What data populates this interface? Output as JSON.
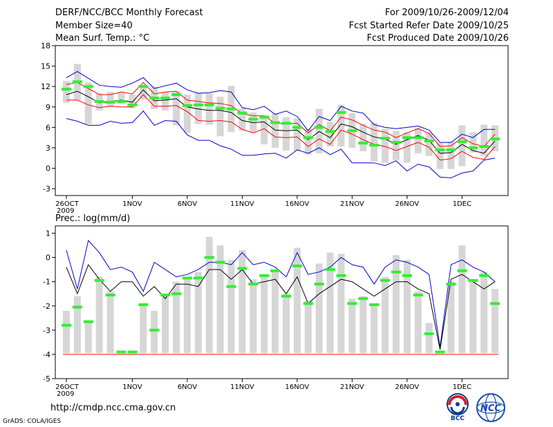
{
  "header": {
    "title": "DERF/NCC/BCC Monthly Forecast",
    "member_size": "Member Size=40",
    "variable": "Mean Surf. Temp.: °C",
    "period": "For 2009/10/26-2009/12/04",
    "started": "Fcst Started Refer Date 2009/10/25",
    "produced": "Fcst Produced Date 2009/10/26"
  },
  "footer": {
    "url": "http://cmdp.ncc.cma.gov.cn",
    "credit": "GrADS: COLA/IGES",
    "logo_bcc": "BCC",
    "logo_ncc": "NCC"
  },
  "colors": {
    "box": "#d6d6d6",
    "obs": "#33ee33",
    "mean": "#000000",
    "spread": "#ff0000",
    "extreme": "#0000cc"
  },
  "chart_data": [
    {
      "type": "box-line",
      "title": "Mean Surf. Temp.: °C",
      "xlabel": "",
      "ylabel": "°C",
      "ylim": [
        -4,
        18
      ],
      "yticks": [
        -3,
        0,
        3,
        6,
        9,
        12,
        15,
        18
      ],
      "xticks": [
        {
          "day": 0,
          "label": "26OCT",
          "sub": "2009"
        },
        {
          "day": 6,
          "label": "1NOV"
        },
        {
          "day": 11,
          "label": "6NOV"
        },
        {
          "day": 16,
          "label": "11NOV"
        },
        {
          "day": 21,
          "label": "16NOV"
        },
        {
          "day": 26,
          "label": "21NOV"
        },
        {
          "day": 31,
          "label": "26NOV"
        },
        {
          "day": 36,
          "label": "1DEC"
        }
      ],
      "days": 40,
      "box_high": [
        12.8,
        15.3,
        12.6,
        11.0,
        11.2,
        11.2,
        10.8,
        12.2,
        12.0,
        11.2,
        11.3,
        10.8,
        11.1,
        11.0,
        10.5,
        12.1,
        8.8,
        8.2,
        7.8,
        8.1,
        7.5,
        7.3,
        5.8,
        8.7,
        6.8,
        9.3,
        8.1,
        6.5,
        6.7,
        5.8,
        5.5,
        5.3,
        6.0,
        5.2,
        3.7,
        3.9,
        6.3,
        5.3,
        6.4,
        6.3
      ],
      "box_low": [
        9.6,
        10.0,
        6.5,
        8.5,
        9.0,
        9.5,
        8.8,
        10.1,
        8.7,
        8.5,
        6.3,
        5.2,
        6.5,
        6.4,
        4.7,
        5.3,
        5.5,
        5.2,
        3.5,
        3.0,
        2.6,
        2.5,
        2.0,
        2.2,
        3.2,
        3.2,
        3.0,
        2.5,
        1.0,
        0.8,
        1.2,
        0.8,
        2.2,
        1.8,
        -0.1,
        -0.1,
        0.3,
        2.3,
        1.8,
        2.5
      ],
      "obs": [
        11.6,
        12.7,
        12.0,
        9.8,
        9.7,
        9.8,
        9.3,
        12.0,
        10.3,
        10.3,
        10.8,
        9.2,
        9.3,
        9.3,
        8.8,
        8.7,
        8.1,
        7.2,
        7.5,
        6.7,
        6.6,
        6.0,
        4.5,
        6.0,
        5.4,
        8.2,
        5.5,
        3.7,
        3.4,
        4.4,
        3.8,
        4.5,
        4.5,
        4.0,
        2.7,
        2.7,
        3.9,
        3.0,
        3.2,
        4.3
      ],
      "mean": [
        10.8,
        11.3,
        10.5,
        9.6,
        9.8,
        10.0,
        9.7,
        11.5,
        9.9,
        10.0,
        10.2,
        9.0,
        8.7,
        8.5,
        8.5,
        8.2,
        7.0,
        6.7,
        6.8,
        5.6,
        5.5,
        5.6,
        4.2,
        5.4,
        4.5,
        6.5,
        6.1,
        5.3,
        4.6,
        4.3,
        3.5,
        4.2,
        4.8,
        4.1,
        2.2,
        2.3,
        3.5,
        2.6,
        2.2,
        4.0
      ],
      "upper": [
        12.3,
        12.6,
        11.7,
        10.8,
        10.8,
        11.2,
        10.9,
        12.6,
        10.9,
        11.2,
        11.3,
        10.0,
        9.8,
        9.6,
        9.5,
        9.2,
        8.0,
        7.7,
        7.7,
        6.6,
        6.5,
        6.6,
        5.2,
        6.4,
        5.5,
        7.5,
        7.1,
        6.3,
        5.6,
        5.3,
        4.5,
        5.2,
        5.8,
        5.1,
        3.2,
        3.3,
        4.5,
        3.6,
        3.2,
        5.0
      ],
      "lower": [
        10.0,
        10.0,
        9.3,
        8.9,
        9.1,
        9.0,
        9.0,
        10.8,
        9.1,
        9.1,
        9.2,
        8.3,
        7.0,
        6.9,
        7.0,
        6.8,
        5.7,
        5.2,
        5.8,
        4.6,
        4.5,
        4.6,
        3.2,
        4.3,
        3.5,
        5.6,
        5.0,
        4.2,
        3.5,
        3.2,
        2.6,
        3.2,
        3.8,
        3.1,
        1.2,
        1.4,
        2.5,
        1.6,
        1.3,
        3.2
      ],
      "max": [
        13.3,
        14.2,
        13.2,
        12.2,
        12.0,
        11.9,
        12.5,
        13.3,
        11.7,
        12.1,
        12.5,
        11.5,
        11.0,
        11.1,
        11.4,
        11.2,
        8.9,
        8.6,
        9.1,
        7.9,
        8.4,
        7.6,
        5.5,
        7.6,
        7.0,
        9.1,
        8.4,
        8.1,
        6.4,
        6.0,
        5.8,
        6.0,
        6.2,
        5.6,
        3.8,
        3.8,
        5.0,
        4.5,
        5.7,
        5.7
      ],
      "min": [
        7.3,
        6.9,
        6.3,
        6.3,
        6.9,
        6.6,
        6.7,
        8.4,
        6.3,
        7.0,
        6.9,
        4.9,
        4.1,
        4.1,
        3.3,
        2.8,
        1.9,
        1.9,
        2.1,
        2.2,
        1.5,
        2.7,
        2.2,
        3.0,
        2.0,
        2.8,
        0.8,
        0.8,
        0.8,
        0.4,
        1.1,
        -0.4,
        0.6,
        0.2,
        -1.3,
        -1.4,
        -0.7,
        -0.4,
        1.2,
        1.5
      ]
    },
    {
      "type": "box-line",
      "title": "Prec.: log(mm/d)",
      "xlabel": "",
      "ylabel": "log(mm/d)",
      "ylim": [
        -5,
        1.3
      ],
      "yticks": [
        -5,
        -4,
        -3,
        -2,
        -1,
        0,
        1
      ],
      "xticks": [
        {
          "day": 0,
          "label": "26OCT",
          "sub": "2009"
        },
        {
          "day": 6,
          "label": "1NOV"
        },
        {
          "day": 11,
          "label": "6NOV"
        },
        {
          "day": 16,
          "label": "11NOV"
        },
        {
          "day": 21,
          "label": "16NOV"
        },
        {
          "day": 26,
          "label": "21NOV"
        },
        {
          "day": 31,
          "label": "26NOV"
        },
        {
          "day": 36,
          "label": "1DEC"
        }
      ],
      "days": 40,
      "floor": -4,
      "box_high": [
        -2.2,
        -1.6,
        -2.7,
        -0.8,
        -1.4,
        -3.9,
        -3.9,
        -2.0,
        -2.2,
        -1.6,
        -1.0,
        -0.8,
        -0.6,
        0.85,
        0.5,
        -0.1,
        0.3,
        -0.9,
        -0.7,
        -0.6,
        -1.5,
        0.4,
        -1.8,
        -0.25,
        0.2,
        0.15,
        -1.7,
        -1.6,
        -1.9,
        -0.8,
        0.1,
        -0.1,
        -1.4,
        -2.7,
        -3.9,
        -1.0,
        0.5,
        -0.9,
        -0.6,
        -1.3
      ],
      "box_low": [
        -3.95,
        -3.95,
        -3.95,
        -3.95,
        -3.95,
        -3.95,
        -3.95,
        -3.95,
        -3.95,
        -3.95,
        -3.95,
        -3.95,
        -3.95,
        -3.95,
        -3.95,
        -3.95,
        -3.95,
        -3.95,
        -3.95,
        -3.95,
        -3.95,
        -3.95,
        -3.95,
        -3.95,
        -3.95,
        -3.95,
        -3.95,
        -3.95,
        -3.95,
        -3.95,
        -3.95,
        -3.95,
        -3.95,
        -3.95,
        -3.95,
        -3.95,
        -3.95,
        -3.95,
        -3.95,
        -3.95
      ],
      "obs": [
        -2.8,
        -2.05,
        -2.65,
        -0.95,
        -1.55,
        -3.9,
        -3.9,
        -1.95,
        -3.0,
        -1.55,
        -1.5,
        -0.85,
        -0.85,
        0.0,
        -0.2,
        -1.2,
        -0.45,
        -1.1,
        -0.75,
        -0.55,
        -1.6,
        -0.35,
        -1.9,
        -1.1,
        -0.5,
        -0.75,
        -1.9,
        -1.7,
        -1.95,
        -0.95,
        -0.6,
        -0.75,
        -1.55,
        -3.15,
        -3.9,
        -1.1,
        -0.55,
        -0.95,
        -0.75,
        -1.9
      ],
      "mean": [
        -0.4,
        -1.5,
        -0.3,
        -0.9,
        -1.4,
        -1.0,
        -1.0,
        -1.6,
        -1.2,
        -1.7,
        -1.1,
        -1.1,
        -1.2,
        -0.5,
        -0.5,
        -0.9,
        -0.5,
        -1.1,
        -1.0,
        -0.9,
        -1.5,
        -0.8,
        -1.9,
        -1.5,
        -1.2,
        -0.9,
        -1.0,
        -1.3,
        -1.6,
        -1.3,
        -1.0,
        -1.0,
        -1.3,
        -1.5,
        -3.8,
        -0.9,
        -0.7,
        -1.0,
        -1.3,
        -1.0
      ],
      "max": [
        0.3,
        -1.3,
        0.7,
        0.2,
        -0.5,
        -0.4,
        -0.6,
        -1.4,
        -0.2,
        -0.5,
        -0.8,
        -0.7,
        -0.5,
        -0.2,
        -0.2,
        -0.3,
        0.2,
        -0.3,
        -0.2,
        -0.4,
        -0.8,
        0.2,
        -0.7,
        -0.6,
        -0.4,
        0.0,
        -0.3,
        -0.4,
        -1.1,
        -0.4,
        -0.1,
        -0.2,
        -0.4,
        -0.7,
        -3.7,
        -0.3,
        -0.1,
        -0.4,
        -0.6,
        -1.0
      ],
      "min": [
        -4.0,
        -4.0,
        -4.0,
        -4.0,
        -4.0,
        -4.0,
        -4.0,
        -4.0,
        -4.0,
        -4.0,
        -4.0,
        -4.0,
        -4.0,
        -4.0,
        -4.0,
        -4.0,
        -4.0,
        -4.0,
        -4.0,
        -4.0,
        -4.0,
        -4.0,
        -4.0,
        -4.0,
        -4.0,
        -4.0,
        -4.0,
        -4.0,
        -4.0,
        -4.0,
        -4.0,
        -4.0,
        -4.0,
        -4.0,
        -4.0,
        -4.0,
        -4.0,
        -4.0,
        -4.0,
        -4.0
      ]
    }
  ]
}
